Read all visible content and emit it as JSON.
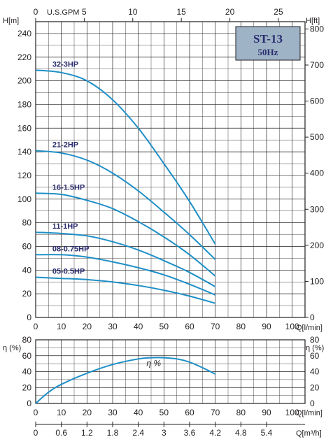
{
  "chart_data": [
    {
      "type": "line",
      "title_box": {
        "model": "ST-13",
        "frequency": "50Hz"
      },
      "axes": {
        "y_left": {
          "label": "H[m]",
          "range": [
            0,
            250
          ],
          "ticks": [
            0,
            20,
            40,
            60,
            80,
            100,
            120,
            140,
            160,
            180,
            200,
            220,
            240
          ]
        },
        "y_right": {
          "label": "H[ft]",
          "range": [
            0,
            820.2
          ],
          "ticks": [
            0,
            100,
            200,
            300,
            400,
            500,
            600,
            700,
            800
          ]
        },
        "x_bottom": {
          "label": "Q[l/min]",
          "range": [
            0,
            105
          ],
          "ticks": [
            0,
            10,
            20,
            30,
            40,
            50,
            60,
            70,
            80,
            90,
            100
          ]
        },
        "x_top": {
          "label": "U.S.GPM",
          "range": [
            0,
            27.74
          ],
          "ticks": [
            0,
            5,
            10,
            15,
            20,
            25
          ]
        }
      },
      "grid": true,
      "series": [
        {
          "name": "32-3HP",
          "x": [
            0,
            10,
            20,
            30,
            40,
            50,
            60,
            70
          ],
          "y": [
            209,
            207,
            200,
            184,
            160,
            130,
            98,
            62
          ]
        },
        {
          "name": "21-2HP",
          "x": [
            0,
            10,
            20,
            30,
            40,
            50,
            60,
            70
          ],
          "y": [
            141,
            139,
            133,
            122,
            107,
            89,
            70,
            49
          ]
        },
        {
          "name": "16-1.5HP",
          "x": [
            0,
            10,
            20,
            30,
            40,
            50,
            60,
            70
          ],
          "y": [
            105,
            104,
            99,
            92,
            81,
            68,
            53,
            35
          ]
        },
        {
          "name": "11-1HP",
          "x": [
            0,
            10,
            20,
            30,
            40,
            50,
            60,
            70
          ],
          "y": [
            72,
            71,
            69,
            64,
            57,
            48,
            38,
            26
          ]
        },
        {
          "name": "08-0.75HP",
          "x": [
            0,
            10,
            20,
            30,
            40,
            50,
            60,
            70
          ],
          "y": [
            53,
            53,
            51,
            47,
            42,
            36,
            28,
            19
          ]
        },
        {
          "name": "05-0.5HP",
          "x": [
            0,
            10,
            20,
            30,
            40,
            50,
            60,
            70
          ],
          "y": [
            34,
            33,
            32,
            30,
            27,
            23,
            18,
            12
          ]
        }
      ]
    },
    {
      "type": "line",
      "axes": {
        "y_left": {
          "label": "η (%)",
          "range": [
            0,
            80
          ],
          "ticks": [
            0,
            20,
            40,
            60,
            80
          ]
        },
        "y_right": {
          "label": "η (%)",
          "range": [
            0,
            80
          ],
          "ticks": [
            0,
            20,
            40,
            60,
            80
          ]
        },
        "x_bottom": {
          "label": "Q[l/min]",
          "range": [
            0,
            105
          ],
          "ticks": [
            0,
            10,
            20,
            30,
            40,
            50,
            60,
            70,
            80,
            90,
            100
          ]
        },
        "x_bottom2": {
          "label": "Q[m³/h]",
          "ticks": [
            "0",
            "0.6",
            "1.2",
            "1.8",
            "2.4",
            "3",
            "3.6",
            "4.2",
            "4.8",
            "5.4"
          ]
        }
      },
      "grid": true,
      "series": [
        {
          "name": "η %",
          "x": [
            0,
            5,
            10,
            20,
            30,
            40,
            45,
            50,
            55,
            60,
            65,
            70
          ],
          "y": [
            0,
            14,
            24,
            38,
            49,
            56,
            57.5,
            57.5,
            56,
            52,
            45,
            37
          ]
        }
      ]
    }
  ],
  "colors": {
    "curve": "#1e8fc7",
    "grid": "#231f20",
    "label": "#2b2d6e",
    "title_box_fill": "#9eb3c6"
  }
}
